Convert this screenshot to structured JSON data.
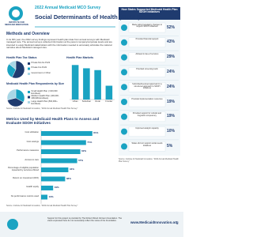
{
  "header": {
    "logo": "INSTITUTE FOR MEDICAID INNOVATION",
    "survey": "2022 Annual Medicaid MCO Survey",
    "title": "Social Determinants of Health (SDOH)"
  },
  "methods": {
    "heading": "Methods and Overview",
    "text": "In its fifth year, the 2022 survey findings represent health plan data from annual surveys with Medicaid managed care. The annual surveys collected information at the parent company/corporate levels and are intended to equip Medicaid stakeholders with the information needed to accurately articulate the national narrative about Medicaid managed care."
  },
  "chart_data": [
    {
      "type": "pie",
      "title": "Health Plan Tax Status",
      "categories": [
        "Private Not-for-Profit",
        "Private For-Profit",
        "Government or Other"
      ],
      "values": [
        57,
        29,
        14
      ],
      "colors": [
        "#1f3b6f",
        "#1aa3c2",
        "#a9d7e6"
      ]
    },
    {
      "type": "bar",
      "title": "Health Plan Markets",
      "categories": [
        "Urban",
        "Suburban",
        "Rural",
        "Frontier"
      ],
      "values": [
        95,
        86,
        81,
        38
      ],
      "color": "#1aa3c2",
      "ylim": [
        0,
        100
      ]
    },
    {
      "type": "pie",
      "title": "Medicaid Health Plan Respondents by Size",
      "categories": [
        "Small Health Plan (<100,000 Enrollees)",
        "Medium Health Plan (100,000-499,999 Enrollees)",
        "Large Health Plan (500,000+ Enrollees)"
      ],
      "values": [
        33,
        38,
        29
      ],
      "colors": [
        "#1aa3c2",
        "#1f3b6f",
        "#a9d7e6"
      ]
    },
    {
      "type": "hbar",
      "title": "Metrics Used by Medicaid Health Plans to Assess and Evaluate SDOH Initiatives",
      "categories": [
        "Cost utilization",
        "Cost savings",
        "Performance measures",
        "Access to care",
        "Percentage of eligible population impacted by services offered",
        "Return on investment (ROI)",
        "Health equity",
        "No performance metrics used"
      ],
      "values": [
        81,
        71,
        62,
        57,
        43,
        38,
        19,
        10
      ],
      "value_labels": [
        "81%",
        "71%",
        "62%",
        "57%",
        "43%",
        "38%",
        "19%",
        "10%"
      ],
      "color": "#1aa3c2"
    }
  ],
  "sources": [
    "Source: Institute for Medicaid Innovation, \"2022 Annual Medicaid Health Plan Survey\"",
    "Source: Institute for Medicaid Innovation, \"2022 Annual Medicaid Health Plan Survey\"",
    "Source: Institute for Medicaid Innovation, \"2022 Annual Medicaid Health Plan Survey\""
  ],
  "state_support": {
    "title": "How States Supported Medicaid Health Plan SDOH Initiatives",
    "rows": [
      {
        "text": "Made policy/regulatory changes to support SDOH initiatives",
        "value": "52%"
      },
      {
        "text": "Provided financial support",
        "value": "43%"
      },
      {
        "text": "Allowed in-lieu-of services",
        "value": "29%"
      },
      {
        "text": "Provided screening tools",
        "value": "24%"
      },
      {
        "text": "Submitted/received approval for a structured approach to SDOH initiatives",
        "value": "24%"
      },
      {
        "text": "Provided implementation resources",
        "value": "19%"
      },
      {
        "text": "Provided support for cultural and linguistic competency",
        "value": "19%"
      },
      {
        "text": "Improved analytic capacity",
        "value": "10%"
      },
      {
        "text": "States did not support social-needs initiatives",
        "value": "5%"
      }
    ]
  },
  "footer": {
    "support": "Support for this project is provided by The Robert Wood Johnson Foundation. The views expressed here do not necessarily reflect the views of the Foundation.",
    "url": "www.MedicaidInnovation.org",
    "page": "1"
  }
}
